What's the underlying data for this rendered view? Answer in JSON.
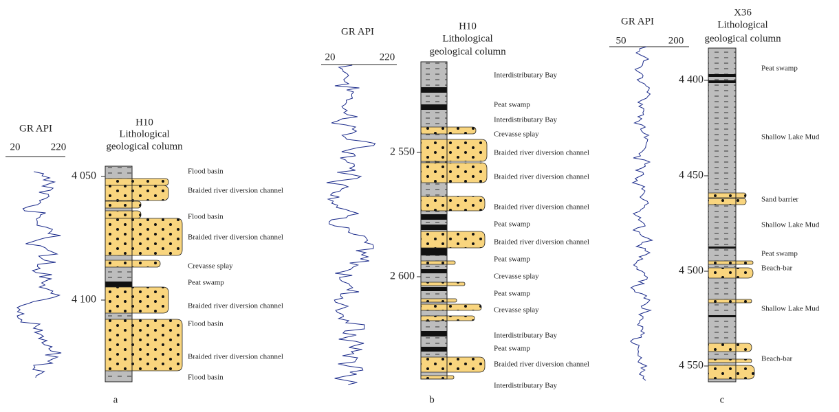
{
  "panels": [
    {
      "curve_label": "GR API",
      "scale_min": 20,
      "scale_max": 220,
      "column_title": [
        "H10",
        "Lithological",
        "geological column"
      ],
      "depths": [
        "4 050",
        "4 100"
      ],
      "facies": [
        "Flood basin",
        "Braided river diversion channel",
        "Flood basin",
        "Braided river diversion channel",
        "Crevasse splay",
        "Peat swamp",
        "Braided river diversion channel",
        "Flood basin",
        "Braided river diversion channel",
        "Flood basin"
      ],
      "label": "a"
    },
    {
      "curve_label": "GR  API",
      "scale_min": 20,
      "scale_max": 220,
      "column_title": [
        "H10",
        "Lithological",
        "geological column"
      ],
      "depths": [
        "2 550",
        "2 600"
      ],
      "facies": [
        "Interdistributary Bay",
        "Peat swamp",
        "Interdistributary Bay",
        "Crevasse splay",
        "Braided river diversion channel",
        "Braided river diversion channel",
        "Braided river diversion channel",
        "Peat swamp",
        "Braided river diversion channel",
        "Peat swamp",
        "Crevasse splay",
        "Peat swamp",
        "Crevasse splay",
        "Interdistributary Bay",
        "Peat swamp",
        "Braided river diversion channel",
        "Interdistributary Bay"
      ],
      "label": "b"
    },
    {
      "curve_label": "GR API",
      "scale_min": 50,
      "scale_max": 200,
      "column_title": [
        "X36",
        "Lithological",
        "geological column"
      ],
      "depths": [
        "4 400",
        "4 450",
        "4 500",
        "4 550"
      ],
      "facies": [
        "Peat swamp",
        "Shallow Lake Mud",
        "Sand barrier",
        "Shallow Lake Mud",
        "Peat swamp",
        "Beach-bar",
        "Shallow Lake Mud",
        "Beach-bar"
      ],
      "label": "c"
    }
  ]
}
